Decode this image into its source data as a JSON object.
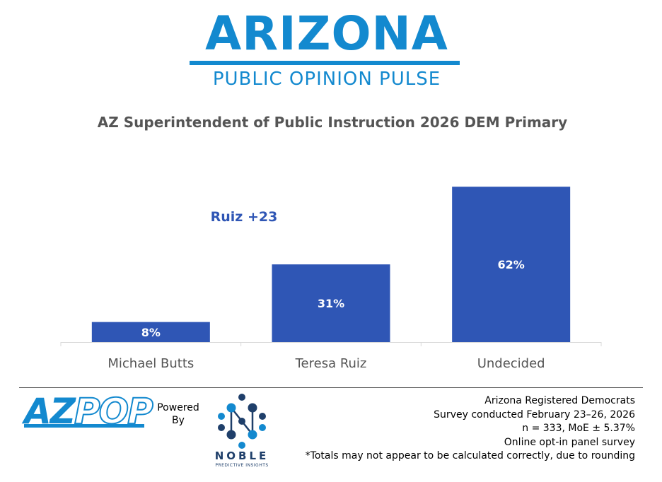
{
  "header": {
    "logo_main": "ARIZONA",
    "logo_sub": "PUBLIC OPINION PULSE"
  },
  "annotation": "Ruiz +23",
  "colors": {
    "bar": "#2f56b5",
    "brand": "#1389cf",
    "title": "#555555",
    "axis": "#d9d9d9"
  },
  "chart_data": {
    "type": "bar",
    "title": "AZ Superintendent of Public Instruction 2026 DEM Primary",
    "categories": [
      "Michael Butts",
      "Teresa Ruiz",
      "Undecided"
    ],
    "values": [
      8,
      31,
      62
    ],
    "data_labels": [
      "8%",
      "31%",
      "62%"
    ],
    "xlabel": "",
    "ylabel": "",
    "ylim": [
      0,
      66
    ],
    "grid": false
  },
  "footer": {
    "logo_az": "AZ",
    "logo_pop": "POP",
    "powered_by": [
      "Powered",
      "By"
    ],
    "noble_name": "NOBLE",
    "noble_tagline": "PREDICTIVE INSIGHTS",
    "notes": [
      "Arizona Registered Democrats",
      "Survey conducted February 23–26, 2026",
      "n = 333, MoE ± 5.37%",
      "Online opt-in panel survey",
      "*Totals may not appear to be calculated correctly, due to rounding"
    ]
  }
}
